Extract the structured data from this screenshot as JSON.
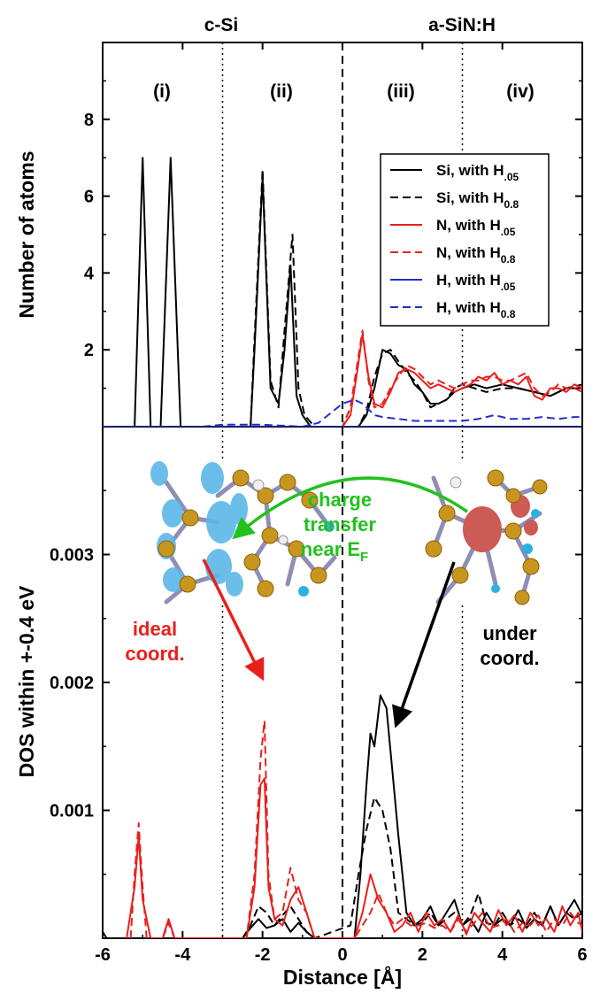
{
  "header": {
    "left": "c-Si",
    "right": "a-SiN:H"
  },
  "regions": [
    "(i)",
    "(ii)",
    "(iii)",
    "(iv)"
  ],
  "colors": {
    "si": "#000000",
    "n": "#e8201c",
    "h": "#1f2fd0",
    "green": "#22c11e",
    "red_arrow": "#e8201c",
    "black_arrow": "#000000"
  },
  "legend": [
    {
      "label": "Si, with H",
      "sub": ".05",
      "series": "Si_H05"
    },
    {
      "label": "Si, with H",
      "sub": "0.8",
      "series": "Si_H08"
    },
    {
      "label": "N, with H",
      "sub": ".05",
      "series": "N_H05"
    },
    {
      "label": "N, with H",
      "sub": "0.8",
      "series": "N_H08"
    },
    {
      "label": "H, with H",
      "sub": ".05",
      "series": "H_H05"
    },
    {
      "label": "H, with H",
      "sub": "0.8",
      "series": "H_H08"
    }
  ],
  "annotations": {
    "charge_transfer": [
      "charge",
      "transfer",
      "near E"
    ],
    "charge_transfer_sub": "F",
    "ideal": [
      "ideal",
      "coord."
    ],
    "under": [
      "under",
      "coord."
    ]
  },
  "insets": [
    {
      "name": "c-si-structure-inset",
      "depicts": "silicon atom cluster with blue charge isosurfaces"
    },
    {
      "name": "a-sinh-structure-inset",
      "depicts": "silicon atom cluster with red charge isosurface"
    }
  ],
  "chart_data": [
    {
      "type": "line",
      "ylabel": "Number of atoms",
      "xlim": [
        -6,
        6
      ],
      "ylim": [
        0,
        10
      ],
      "yticks": [
        2,
        4,
        6,
        8
      ],
      "vlines": [
        {
          "x": -3,
          "style": "dotted"
        },
        {
          "x": 0,
          "style": "dashed"
        },
        {
          "x": 3,
          "style": "dotted"
        }
      ],
      "series": [
        {
          "name": "Si, with H.05",
          "key": "Si_H05",
          "color": "#000000",
          "dash": "solid",
          "x": [
            -5.2,
            -5.0,
            -4.8,
            -4.55,
            -4.3,
            -4.05,
            -2.3,
            -2.2,
            -2.0,
            -1.8,
            -1.6,
            -1.45,
            -1.3,
            -1.15,
            -1.0,
            -0.8,
            -0.6,
            0.0,
            0.4,
            0.6,
            0.8,
            1.0,
            1.2,
            1.4,
            1.6,
            1.8,
            2.0,
            2.2,
            2.4,
            2.6,
            2.8,
            3.0,
            3.3,
            3.6,
            4.0,
            4.4,
            4.8,
            5.2,
            5.6,
            6.0
          ],
          "y": [
            0,
            7.0,
            0,
            0,
            7.0,
            0,
            0,
            2.0,
            6.5,
            1.0,
            0.6,
            2.0,
            4.2,
            0.8,
            0.3,
            0,
            0,
            0,
            0,
            0.3,
            1.0,
            2.0,
            1.9,
            1.6,
            1.5,
            1.1,
            0.9,
            0.6,
            0.6,
            0.7,
            0.9,
            1.0,
            1.1,
            1.0,
            1.1,
            1.0,
            0.9,
            0.8,
            1.0,
            1.0
          ]
        },
        {
          "name": "Si, with H0.8",
          "key": "Si_H08",
          "color": "#000000",
          "dash": "dashed",
          "x": [
            -2.3,
            -2.2,
            -2.0,
            -1.8,
            -1.6,
            -1.45,
            -1.25,
            -1.1,
            -0.95,
            -0.7,
            0.4,
            0.6,
            0.8,
            1.0,
            1.2,
            1.4,
            1.6,
            1.8,
            2.0,
            2.2,
            2.4,
            2.6,
            2.8,
            3.0,
            3.3,
            3.6,
            4.0,
            4.4,
            4.8,
            5.2,
            5.6,
            6.0
          ],
          "y": [
            0,
            2.3,
            6.7,
            1.2,
            0.5,
            2.5,
            5.0,
            1.0,
            0.3,
            0,
            0,
            0.4,
            1.3,
            1.9,
            2.0,
            1.7,
            1.4,
            1.2,
            0.9,
            0.5,
            0.6,
            0.7,
            1.0,
            1.1,
            1.0,
            0.9,
            1.0,
            1.0,
            0.9,
            0.8,
            1.0,
            1.1
          ]
        },
        {
          "name": "N, with H.05",
          "key": "N_H05",
          "color": "#e8201c",
          "dash": "solid",
          "x": [
            -1.0,
            -0.6,
            0.0,
            0.2,
            0.35,
            0.5,
            0.65,
            0.8,
            1.0,
            1.2,
            1.4,
            1.6,
            1.8,
            2.0,
            2.2,
            2.4,
            2.6,
            2.8,
            3.0,
            3.2,
            3.4,
            3.6,
            3.8,
            4.0,
            4.2,
            4.4,
            4.6,
            4.8,
            5.0,
            5.2,
            5.4,
            5.6,
            5.8,
            6.0
          ],
          "y": [
            0,
            0,
            0,
            0.3,
            1.3,
            2.4,
            1.3,
            0.6,
            0.5,
            0.9,
            1.4,
            1.5,
            1.4,
            1.2,
            1.0,
            1.1,
            1.0,
            0.9,
            1.0,
            1.1,
            1.3,
            1.2,
            1.4,
            1.1,
            1.2,
            1.1,
            1.3,
            0.8,
            0.7,
            1.0,
            1.0,
            0.9,
            1.1,
            1.0
          ]
        },
        {
          "name": "N, with H0.8",
          "key": "N_H08",
          "color": "#e8201c",
          "dash": "dashed",
          "x": [
            -1.0,
            -0.6,
            0.0,
            0.2,
            0.35,
            0.5,
            0.65,
            0.8,
            1.0,
            1.2,
            1.4,
            1.6,
            1.8,
            2.0,
            2.2,
            2.4,
            2.6,
            2.8,
            3.0,
            3.2,
            3.4,
            3.6,
            3.8,
            4.0,
            4.2,
            4.4,
            4.6,
            4.8,
            5.0,
            5.2,
            5.4,
            5.6,
            5.8,
            6.0
          ],
          "y": [
            0,
            0,
            0,
            0.5,
            1.5,
            2.5,
            1.2,
            0.5,
            0.6,
            1.0,
            1.3,
            1.6,
            1.5,
            1.3,
            1.1,
            1.2,
            1.1,
            1.0,
            1.1,
            1.2,
            1.2,
            1.3,
            1.3,
            1.2,
            1.2,
            1.3,
            1.4,
            1.0,
            0.8,
            0.9,
            1.1,
            1.0,
            1.0,
            0.9
          ]
        },
        {
          "name": "H, with H.05",
          "key": "H_H05",
          "color": "#1f2fd0",
          "dash": "solid",
          "x": [
            -6,
            6
          ],
          "y": [
            0,
            0
          ]
        },
        {
          "name": "H, with H0.8",
          "key": "H_H08",
          "color": "#1f2fd0",
          "dash": "dashed",
          "x": [
            -3.5,
            -3.0,
            -2.0,
            -1.0,
            -0.6,
            -0.3,
            0.0,
            0.3,
            0.5,
            0.8,
            1.0,
            1.4,
            1.8,
            2.2,
            2.6,
            3.0,
            3.4,
            3.8,
            4.2,
            4.6,
            5.0,
            5.4,
            5.8,
            6.0
          ],
          "y": [
            0,
            0.05,
            0.05,
            0,
            0.1,
            0.35,
            0.6,
            0.7,
            0.6,
            0.3,
            0.25,
            0.2,
            0.15,
            0.15,
            0.15,
            0.15,
            0.2,
            0.3,
            0.2,
            0.2,
            0.25,
            0.2,
            0.25,
            0.25
          ]
        }
      ]
    },
    {
      "type": "line",
      "ylabel": "DOS within +-0.4 eV",
      "xlabel": "Distance [Å]",
      "xlim": [
        -6,
        6
      ],
      "ylim": [
        0,
        0.004
      ],
      "yticks": [
        0.001,
        0.002,
        0.003
      ],
      "yticklabels": [
        "0.001",
        "0.002",
        "0.003"
      ],
      "xticks": [
        -6,
        -4,
        -2,
        0,
        2,
        4,
        6
      ],
      "xticklabels": [
        "-6",
        "-4",
        "-2",
        "0",
        "2",
        "4",
        "6"
      ],
      "vlines": [
        {
          "x": -3,
          "style": "dotted"
        },
        {
          "x": 0,
          "style": "dashed"
        },
        {
          "x": 3,
          "style": "dotted"
        }
      ],
      "series": [
        {
          "name": "Si, with H.05",
          "key": "Si_H05",
          "color": "#000000",
          "dash": "solid",
          "x": [
            -6.0,
            -5.9,
            -5.8,
            -2.5,
            -2.3,
            -2.1,
            -1.9,
            -1.7,
            -1.5,
            -1.3,
            -1.1,
            -0.9,
            -0.7,
            0.3,
            0.45,
            0.6,
            0.7,
            0.8,
            0.95,
            1.1,
            1.25,
            1.4,
            1.6,
            1.8,
            2.0,
            2.2,
            2.4,
            2.6,
            2.8,
            3.0,
            3.2,
            3.4,
            3.6,
            3.8,
            4.0,
            4.2,
            4.4,
            4.6,
            4.8,
            5.0,
            5.2,
            5.4,
            5.6,
            5.8,
            6.0
          ],
          "y": [
            5e-05,
            0,
            0,
            0,
            8e-05,
            0.00015,
            8e-05,
            0.0001,
            0.00015,
            5e-05,
            0.00012,
            5e-05,
            0,
            0,
            0.0005,
            0.0012,
            0.0016,
            0.0015,
            0.0019,
            0.0018,
            0.0013,
            0.0008,
            0.0002,
            0.0001,
            0.00015,
            0.00025,
            0.0001,
            0.0002,
            0.0003,
            0.0001,
            0.00015,
            5e-05,
            0.0002,
            0.0001,
            0.00015,
            0.0001,
            0.00022,
            8e-05,
            0.00015,
            0.0001,
            0.00025,
            0.0001,
            0.0002,
            0.0003,
            0.00018
          ]
        },
        {
          "name": "Si, with H0.8",
          "key": "Si_H08",
          "color": "#000000",
          "dash": "dashed",
          "x": [
            -2.5,
            -2.3,
            -2.1,
            -1.9,
            -1.7,
            -1.5,
            -1.3,
            -1.1,
            -0.9,
            -0.7,
            0.2,
            0.4,
            0.6,
            0.8,
            1.0,
            1.2,
            1.4,
            1.6,
            1.8,
            2.0,
            2.2,
            2.4,
            2.6,
            2.8,
            3.0,
            3.2,
            3.4,
            3.6,
            3.8,
            4.0,
            4.2,
            4.4,
            4.6,
            4.8,
            5.0,
            5.2,
            5.4,
            5.6,
            5.8,
            6.0
          ],
          "y": [
            0,
            0.0001,
            0.00025,
            0.0002,
            0.0001,
            0.00018,
            0.00025,
            0.00015,
            5e-05,
            0,
            0.0001,
            0.0005,
            0.00085,
            0.0011,
            0.001,
            0.0007,
            0.0002,
            0.00015,
            0.0001,
            0.00012,
            0.0002,
            0.0001,
            0.00015,
            0.0002,
            0.0001,
            0.00018,
            0.00035,
            0.00012,
            0.0001,
            0.0002,
            0.0001,
            0.00015,
            0.0001,
            0.0002,
            0.0001,
            0.00025,
            0.0001,
            0.0002,
            0.00015,
            0.0002
          ]
        },
        {
          "name": "N, with H.05",
          "key": "N_H05",
          "color": "#e8201c",
          "dash": "solid",
          "x": [
            -5.4,
            -5.2,
            -5.1,
            -5.0,
            -4.8,
            -4.5,
            -4.35,
            -4.2,
            -2.4,
            -2.2,
            -2.05,
            -1.95,
            -1.85,
            -1.7,
            -1.5,
            -1.3,
            -1.1,
            -0.9,
            -0.7,
            0.3,
            0.5,
            0.7,
            0.9,
            1.1,
            1.3,
            1.5,
            1.7,
            1.9,
            2.1,
            2.3,
            2.5,
            2.7,
            2.9,
            3.1,
            3.3,
            3.5,
            3.7,
            3.9,
            4.1,
            4.3,
            4.5,
            4.7,
            4.9,
            5.1,
            5.3,
            5.5,
            5.7,
            5.9,
            6.0
          ],
          "y": [
            0,
            0.0004,
            0.0008,
            0.0003,
            0,
            0,
            0.00015,
            0,
            0,
            0.0004,
            0.0012,
            0.00125,
            0.0004,
            0.00015,
            0.0001,
            0.0003,
            0.0004,
            0.0002,
            0,
            0,
            0.0002,
            0.0005,
            0.0003,
            0.0002,
            5e-05,
            0.0001,
            0.0002,
            5e-05,
            0.0002,
            0.0001,
            0.00015,
            5e-05,
            0.00018,
            3e-05,
            0.0002,
            0.00012,
            5e-05,
            0.00022,
            0.0001,
            0.00018,
            5e-05,
            0.0002,
            0.0001,
            0.00015,
            5e-05,
            0.00025,
            0.0001,
            0.0002,
            5e-05
          ]
        },
        {
          "name": "N, with H0.8",
          "key": "N_H08",
          "color": "#e8201c",
          "dash": "dashed",
          "x": [
            -5.3,
            -5.2,
            -5.1,
            -5.0,
            -4.9,
            -4.5,
            -4.35,
            -4.2,
            -2.4,
            -2.2,
            -2.05,
            -1.95,
            -1.85,
            -1.7,
            -1.5,
            -1.3,
            -1.1,
            -0.9,
            -0.7,
            0.3,
            0.5,
            0.7,
            0.9,
            1.1,
            1.3,
            1.5,
            1.7,
            1.9,
            2.1,
            2.3,
            2.5,
            2.7,
            2.9,
            3.1,
            3.3,
            3.5,
            3.7,
            3.9,
            4.1,
            4.3,
            4.5,
            4.7,
            4.9,
            5.1,
            5.3,
            5.5,
            5.7,
            5.9,
            6.0
          ],
          "y": [
            0,
            0.0005,
            0.0009,
            0.0004,
            0,
            0,
            0.00012,
            0,
            0,
            0.0005,
            0.0014,
            0.0017,
            0.0005,
            0.00015,
            0.0002,
            0.00055,
            0.0003,
            0.0002,
            0,
            0,
            0.0001,
            0.0002,
            0.00035,
            0.0002,
            0.0001,
            0.00015,
            0.0001,
            0.0001,
            0.00012,
            8e-05,
            0.0001,
            5e-05,
            0.00015,
            5e-05,
            0.00012,
            0.0002,
            8e-05,
            0.0001,
            0.00015,
            5e-05,
            0.00012,
            0.0001,
            0.00018,
            5e-05,
            0.00015,
            0.0001,
            0.0002,
            0.00012,
            0.0001
          ]
        }
      ]
    }
  ]
}
